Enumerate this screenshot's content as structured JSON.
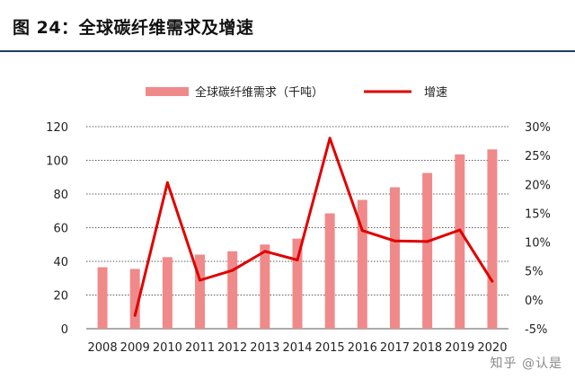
{
  "figure": {
    "title": "图 24：全球碳纤维需求及增速",
    "watermark": "知乎 @认是"
  },
  "colors": {
    "bars": "#f08a8a",
    "line": "#e00000",
    "title_rule": "#1f3d63",
    "gridline": "#222222"
  },
  "chart_data": {
    "type": "bar",
    "categories": [
      "2008",
      "2009",
      "2010",
      "2011",
      "2012",
      "2013",
      "2014",
      "2015",
      "2016",
      "2017",
      "2018",
      "2019",
      "2020"
    ],
    "series": [
      {
        "name": "全球碳纤维需求（千吨）",
        "type": "bar",
        "axis": "left",
        "values": [
          36.5,
          35.5,
          42.5,
          44,
          46,
          50,
          53.5,
          68.5,
          76.5,
          84,
          92.5,
          103.5,
          106.5
        ]
      },
      {
        "name": "增速",
        "type": "line",
        "axis": "right",
        "unit": "%",
        "values": [
          null,
          -2.7,
          20.3,
          3.4,
          5.1,
          8.4,
          6.9,
          28.0,
          12.0,
          10.2,
          10.1,
          12.1,
          3.2
        ]
      }
    ],
    "yleft": {
      "ylim": [
        0,
        120
      ],
      "ticks": [
        0,
        20,
        40,
        60,
        80,
        100,
        120
      ],
      "tick_labels": [
        "0",
        "20",
        "40",
        "60",
        "80",
        "100",
        "120"
      ]
    },
    "yright": {
      "ylim": [
        -5,
        30
      ],
      "ticks": [
        -5,
        0,
        5,
        10,
        15,
        20,
        25,
        30
      ],
      "tick_labels": [
        "-5%",
        "0%",
        "5%",
        "10%",
        "15%",
        "20%",
        "25%",
        "30%"
      ]
    },
    "grid": true,
    "grid_style": "dotted horizontal",
    "legend_position": "top-center"
  }
}
